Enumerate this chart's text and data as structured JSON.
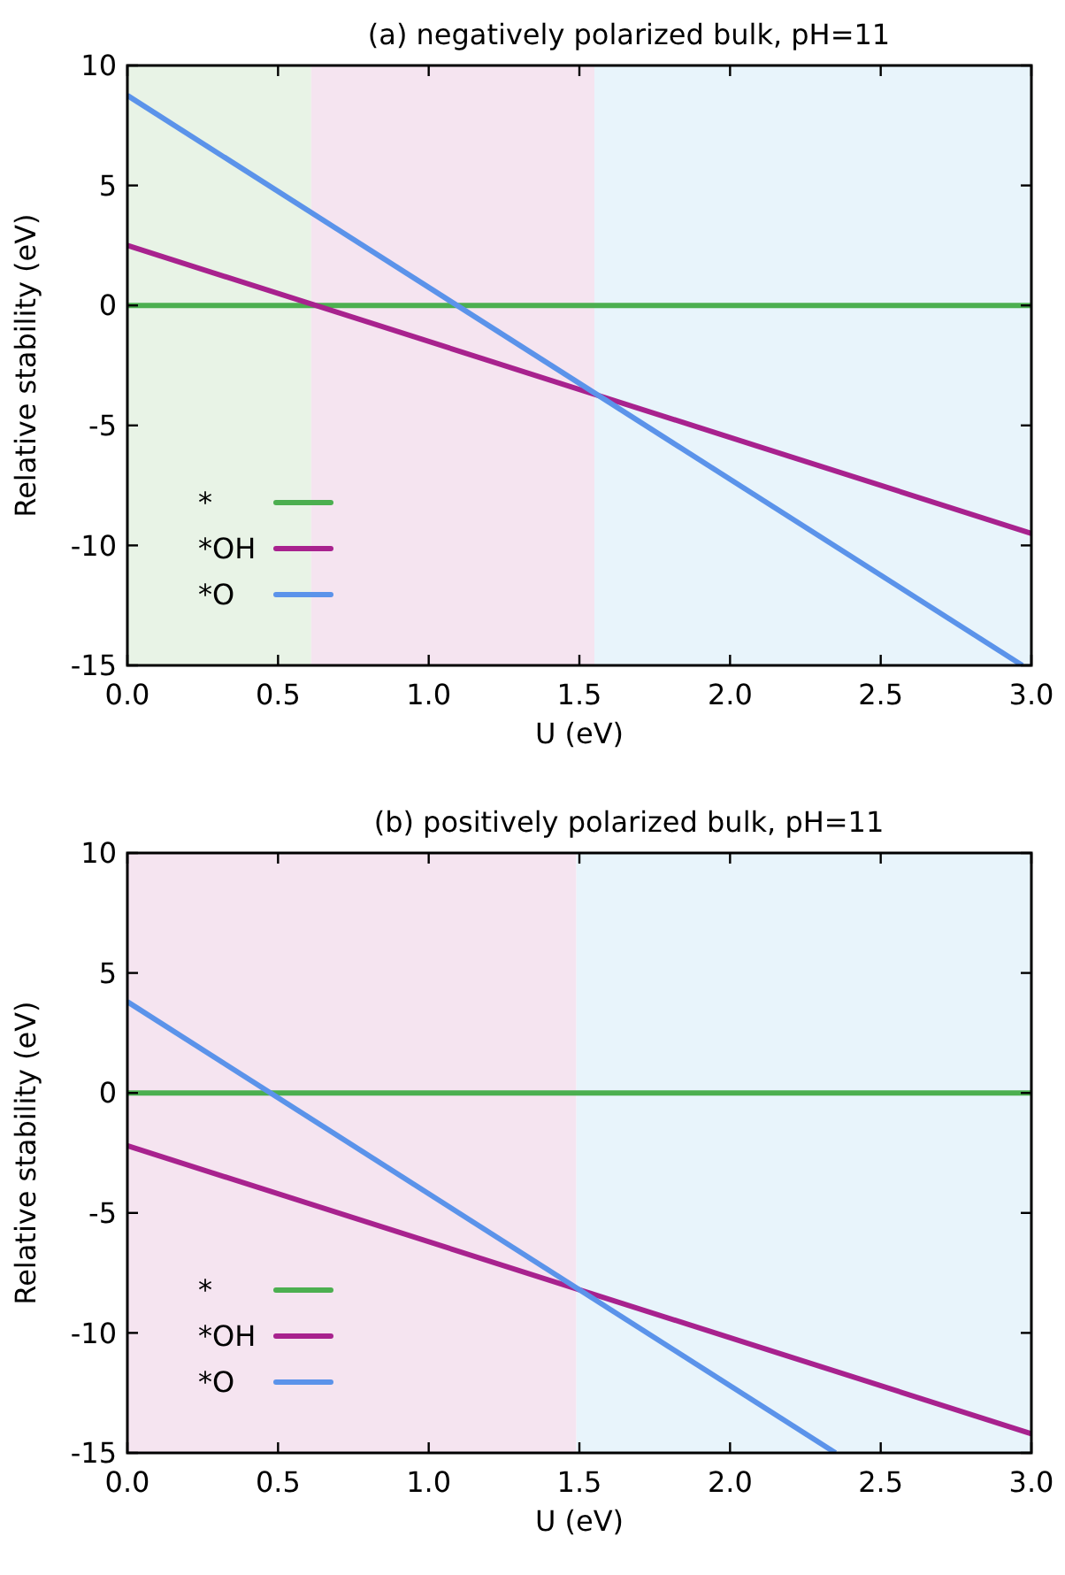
{
  "chart_data": [
    {
      "type": "line",
      "title": "(a) negatively polarized bulk, pH=11",
      "xlabel": "U (eV)",
      "ylabel": "Relative stability (eV)",
      "xlim": [
        0,
        3
      ],
      "ylim": [
        -15,
        10
      ],
      "xticks": [
        {
          "value": 0,
          "label": "0.0"
        },
        {
          "value": 0.5,
          "label": "0.5"
        },
        {
          "value": 1,
          "label": "1.0"
        },
        {
          "value": 1.5,
          "label": "1.5"
        },
        {
          "value": 2,
          "label": "2.0"
        },
        {
          "value": 2.5,
          "label": "2.5"
        },
        {
          "value": 3,
          "label": "3.0"
        }
      ],
      "yticks": [
        10,
        5,
        0,
        -5,
        -10,
        -15
      ],
      "legend": "bottom left",
      "grid": false,
      "bands": [
        {
          "axis": "x",
          "from": 0,
          "to": 0.61,
          "color": "#e8f3e6"
        },
        {
          "axis": "x",
          "from": 0.61,
          "to": 1.55,
          "color": "#f5e4f0"
        },
        {
          "axis": "x",
          "from": 1.55,
          "to": 3,
          "color": "#e8f4fb"
        }
      ],
      "series": [
        {
          "name": "*",
          "color": "#4caf50",
          "x": [
            0,
            3
          ],
          "values": [
            0,
            0
          ]
        },
        {
          "name": "*OH",
          "color": "#a8228e",
          "x": [
            0,
            3
          ],
          "values": [
            2.5,
            -9.5
          ]
        },
        {
          "name": "*O",
          "color": "#5b93ea",
          "x": [
            0,
            2.97
          ],
          "values": [
            8.75,
            -15
          ]
        }
      ]
    },
    {
      "type": "line",
      "title": "(b) positively polarized bulk, pH=11",
      "xlabel": "U (eV)",
      "ylabel": "Relative stability (eV)",
      "xlim": [
        0,
        3
      ],
      "ylim": [
        -15,
        10
      ],
      "xticks": [
        {
          "value": 0,
          "label": "0.0"
        },
        {
          "value": 0.5,
          "label": "0.5"
        },
        {
          "value": 1,
          "label": "1.0"
        },
        {
          "value": 1.5,
          "label": "1.5"
        },
        {
          "value": 2,
          "label": "2.0"
        },
        {
          "value": 2.5,
          "label": "2.5"
        },
        {
          "value": 3,
          "label": "3.0"
        }
      ],
      "yticks": [
        10,
        5,
        0,
        -5,
        -10,
        -15
      ],
      "legend": "bottom left",
      "grid": false,
      "bands": [
        {
          "axis": "x",
          "from": 0,
          "to": 1.49,
          "color": "#f5e4f0"
        },
        {
          "axis": "x",
          "from": 1.49,
          "to": 3,
          "color": "#e8f4fb"
        }
      ],
      "series": [
        {
          "name": "*",
          "color": "#4caf50",
          "x": [
            0,
            3
          ],
          "values": [
            0,
            0
          ]
        },
        {
          "name": "*OH",
          "color": "#a8228e",
          "x": [
            0,
            3
          ],
          "values": [
            -2.2,
            -14.2
          ]
        },
        {
          "name": "*O",
          "color": "#5b93ea",
          "x": [
            0,
            2.35
          ],
          "values": [
            3.8,
            -15
          ]
        }
      ]
    }
  ]
}
